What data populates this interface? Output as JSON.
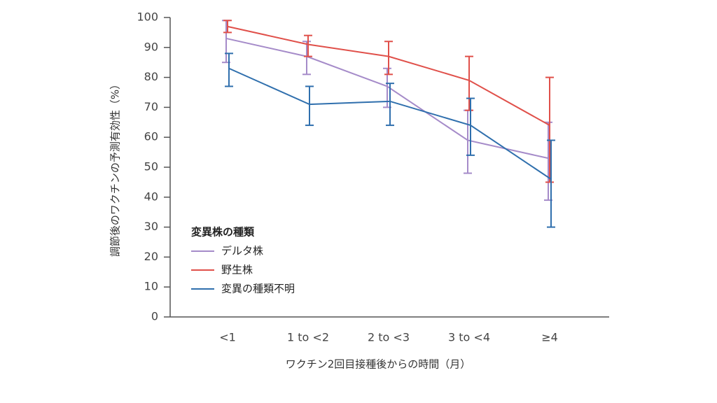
{
  "chart_data": {
    "type": "line",
    "x_label": "ワクチン2回目接種後からの時間（月）",
    "y_label": "調節後のワクチンの予測有効性（%）",
    "categories": [
      "<1",
      "1 to <2",
      "2 to <3",
      "3 to <4",
      "≥4"
    ],
    "ylim": [
      0,
      100
    ],
    "yticks": [
      0,
      10,
      20,
      30,
      40,
      50,
      60,
      70,
      80,
      90,
      100
    ],
    "legend_title": "変異株の種類",
    "legend_position": "lower left",
    "series": [
      {
        "name": "デルタ株",
        "color": "#a58bc9",
        "values": [
          93,
          87,
          77,
          59,
          53
        ],
        "ci_lower": [
          85,
          81,
          70,
          48,
          39
        ],
        "ci_upper": [
          99,
          92,
          83,
          69,
          65
        ]
      },
      {
        "name": "野生株",
        "color": "#e0504a",
        "values": [
          97,
          91,
          87,
          79,
          64
        ],
        "ci_lower": [
          95,
          87,
          81,
          69,
          45
        ],
        "ci_upper": [
          99,
          94,
          92,
          87,
          80
        ]
      },
      {
        "name": "変異の種類不明",
        "color": "#2f6fad",
        "values": [
          83,
          71,
          72,
          64,
          46
        ],
        "ci_lower": [
          77,
          64,
          64,
          54,
          30
        ],
        "ci_upper": [
          88,
          77,
          78,
          73,
          59
        ]
      }
    ]
  }
}
